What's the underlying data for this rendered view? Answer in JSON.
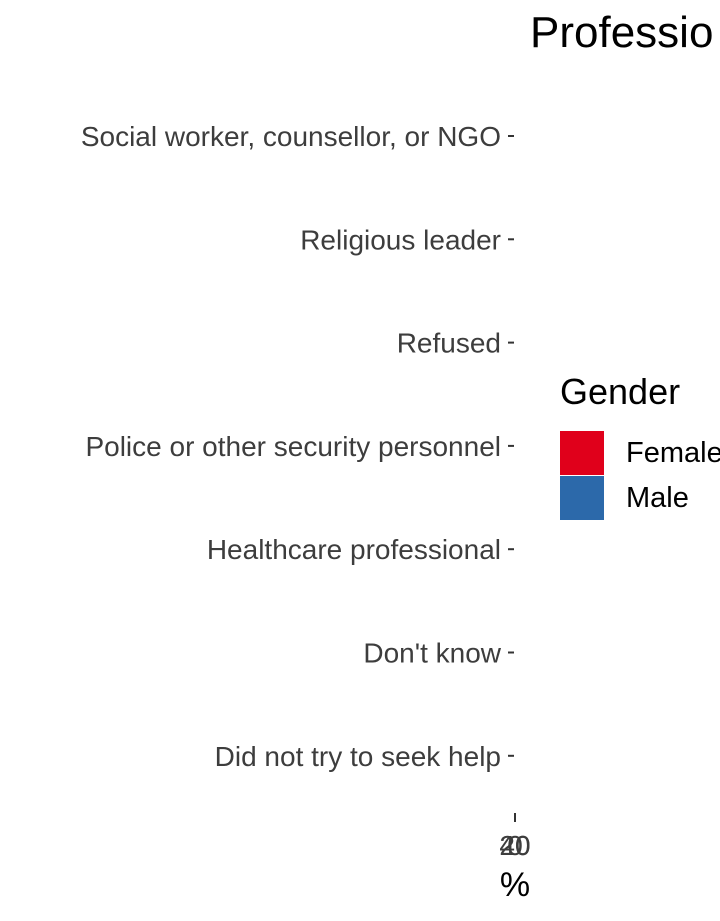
{
  "chart_data": {
    "type": "bar",
    "orientation": "horizontal",
    "title": "Professio",
    "categories": [
      "Social worker, counsellor, or NGO",
      "Religious leader",
      "Refused",
      "Police or other security personnel",
      "Healthcare professional",
      "Don't know",
      "Did not try to seek help"
    ],
    "x_tick_labels": [
      "0",
      "20",
      "40"
    ],
    "xlabel": "%",
    "series": [
      {
        "name": "Female",
        "color": "#e0001b",
        "values": [
          0,
          0,
          0,
          0,
          0,
          0,
          0
        ]
      },
      {
        "name": "Male",
        "color": "#2c69aa",
        "values": [
          0,
          0,
          0,
          0,
          0,
          0,
          0
        ]
      }
    ],
    "legend": {
      "title": "Gender",
      "position": "right"
    },
    "grid": false
  }
}
